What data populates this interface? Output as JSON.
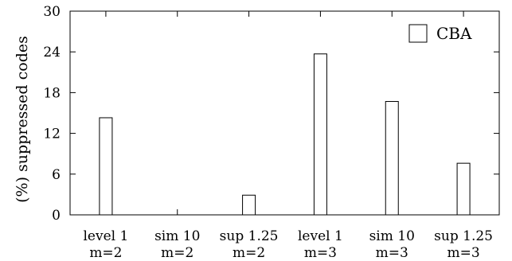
{
  "chart_data": {
    "type": "bar",
    "categories": [
      [
        "level 1",
        "m=2"
      ],
      [
        "sim 10",
        "m=2"
      ],
      [
        "sup 1.25",
        "m=2"
      ],
      [
        "level 1",
        "m=3"
      ],
      [
        "sim 10",
        "m=3"
      ],
      [
        "sup 1.25",
        "m=3"
      ]
    ],
    "series": [
      {
        "name": "CBA",
        "values": [
          14.3,
          0,
          2.9,
          23.7,
          16.7,
          7.6
        ]
      }
    ],
    "ylabel": "(%) suppressed codes",
    "xlabel": "",
    "ylim": [
      0,
      30
    ],
    "yticks": [
      0,
      6,
      12,
      18,
      24,
      30
    ],
    "legend_position": "top-right",
    "grid": false,
    "colors": {
      "bar_fill": "#ffffff",
      "bar_stroke": "#000000",
      "axis": "#000000"
    }
  }
}
